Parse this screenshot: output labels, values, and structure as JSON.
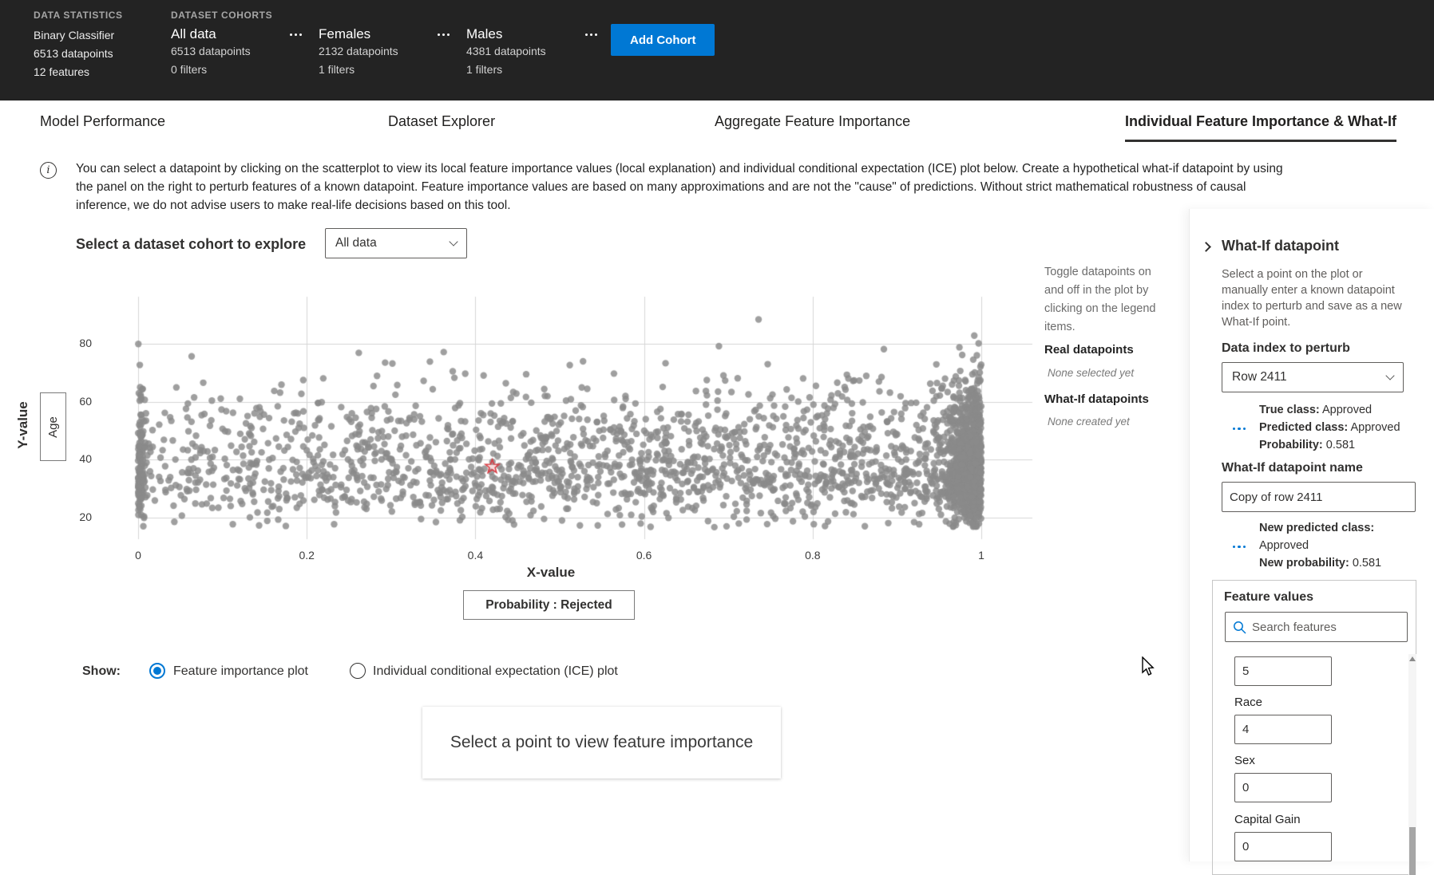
{
  "header": {
    "data_statistics": {
      "label": "DATA STATISTICS",
      "lines": [
        "Binary Classifier",
        "6513 datapoints",
        "12 features"
      ]
    },
    "cohorts_label": "DATASET COHORTS",
    "cohorts": [
      {
        "name": "All data",
        "datapoints": "6513 datapoints",
        "filters": "0 filters"
      },
      {
        "name": "Females",
        "datapoints": "2132 datapoints",
        "filters": "1 filters"
      },
      {
        "name": "Males",
        "datapoints": "4381 datapoints",
        "filters": "1 filters"
      }
    ],
    "add_cohort_label": "Add Cohort"
  },
  "tabs": [
    {
      "label": "Model Performance",
      "active": false
    },
    {
      "label": "Dataset Explorer",
      "active": false
    },
    {
      "label": "Aggregate Feature Importance",
      "active": false
    },
    {
      "label": "Individual Feature Importance & What-If",
      "active": true
    }
  ],
  "info": {
    "text": "You can select a datapoint by clicking on the scatterplot to view its local feature importance values (local explanation) and individual conditional expectation (ICE) plot below. Create a hypothetical what-if datapoint by using the panel on the right to perturb features of a known datapoint. Feature importance values are based on many approximations and are not the \"cause\" of predictions. Without strict mathematical robustness of causal inference, we do not advise users to make real-life decisions based on this tool."
  },
  "cohort_selector": {
    "label": "Select a dataset cohort to explore",
    "value": "All data"
  },
  "chart_data": {
    "type": "scatter",
    "xlabel": "X-value",
    "ylabel": "Y-value",
    "x_feature": "Probability : Rejected",
    "y_feature": "Age",
    "x_ticks": [
      0,
      0.2,
      0.4,
      0.6,
      0.8,
      1
    ],
    "x_tick_labels": [
      "0",
      "0.2",
      "0.4",
      "0.6",
      "0.8",
      "1"
    ],
    "y_ticks": [
      20,
      40,
      60,
      80
    ],
    "y_tick_labels": [
      "20",
      "40",
      "60",
      "80"
    ],
    "xlim": [
      0,
      1.06
    ],
    "ylim": [
      10,
      97
    ],
    "grid": true,
    "point_color": "#8a8a8a",
    "n_points": 2800,
    "seed": 20,
    "distribution_note": "Ages ~17-92 centered near upper 30s; density increases toward x=1 with a very dense band at x≈0.95-1 and a thin column at x=0.",
    "selected_marker": {
      "x": 0.42,
      "y": 37.5,
      "color": "#d83b43",
      "shape": "star"
    }
  },
  "legend": {
    "hint": "Toggle datapoints on and off in the plot by clicking on the legend items.",
    "groups": [
      {
        "title": "Real datapoints",
        "status": "None selected yet"
      },
      {
        "title": "What-If datapoints",
        "status": "None created yet"
      }
    ]
  },
  "show_options": {
    "label": "Show:",
    "options": [
      {
        "label": "Feature importance plot",
        "selected": true
      },
      {
        "label": "Individual conditional expectation (ICE) plot",
        "selected": false
      }
    ]
  },
  "placeholder_card": {
    "text": "Select a point to view feature importance"
  },
  "whatif_panel": {
    "title": "What-If datapoint",
    "description": "Select a point on the plot or manually enter a known datapoint index to perturb and save as a new What-If point.",
    "index_label": "Data index to perturb",
    "index_value": "Row 2411",
    "current": {
      "true_class_label": "True class:",
      "true_class": "Approved",
      "predicted_class_label": "Predicted class:",
      "predicted_class": "Approved",
      "probability_label": "Probability:",
      "probability": "0.581"
    },
    "name_label": "What-If datapoint name",
    "name_value": "Copy of row 2411",
    "new": {
      "predicted_class_label": "New predicted class:",
      "predicted_class": "Approved",
      "probability_label": "New probability:",
      "probability": "0.581"
    },
    "features_label": "Feature values",
    "search_placeholder": "Search features",
    "features": [
      {
        "label": "",
        "value": "5"
      },
      {
        "label": "Race",
        "value": "4"
      },
      {
        "label": "Sex",
        "value": "0"
      },
      {
        "label": "Capital Gain",
        "value": "0"
      }
    ]
  },
  "icons": {
    "cohort_menu": "ellipsis-icon",
    "dropdown": "chevron-down-icon",
    "panel_expand": "chevron-right-icon",
    "search": "search-icon",
    "info": "info-icon",
    "scroll_up": "triangle-up-icon",
    "class_marker": "dotted-line-icon"
  },
  "colors": {
    "accent": "#0078d4",
    "header_bg": "#232323",
    "point": "#8a8a8a",
    "marker": "#d83b43"
  }
}
